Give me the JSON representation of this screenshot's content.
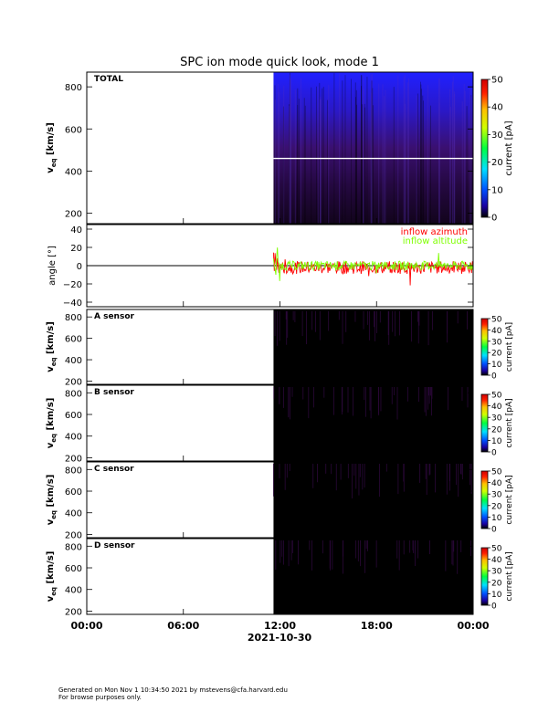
{
  "chart_data": {
    "title": "SPC ion mode quick look, mode 1",
    "date_label": "2021-10-30",
    "x_ticks": [
      "00:00",
      "06:00",
      "12:00",
      "18:00",
      "00:00"
    ],
    "x_range_hours": [
      0,
      24
    ],
    "data_start_hour": 11.6,
    "colorbar_label": "current [pA]",
    "colorbar_ticks_total": [
      "0",
      "10",
      "20",
      "30",
      "40",
      "50"
    ],
    "colorbar_ticks_sensor": [
      "0",
      "10",
      "20",
      "30",
      "40",
      "50"
    ],
    "vel_ylabel_main": "v",
    "vel_ylabel_sub": "eq",
    "vel_ylabel_unit": "[km/s]",
    "panels": [
      {
        "name": "TOTAL",
        "type": "heatmap",
        "ylim": [
          150,
          870
        ],
        "yticks": [
          "200",
          "400",
          "600",
          "800"
        ],
        "white_line_value": 460
      },
      {
        "name": "angle",
        "type": "line",
        "ylabel": "angle [°]",
        "ylim": [
          -45,
          45
        ],
        "yticks": [
          "40",
          "20",
          "0",
          "−20",
          "−40"
        ],
        "series": [
          {
            "name": "inflow azimuth",
            "color": "#ff0000"
          },
          {
            "name": "inflow altitude",
            "color": "#7fff00"
          }
        ]
      },
      {
        "name": "A sensor",
        "type": "heatmap",
        "ylim": [
          170,
          870
        ],
        "yticks": [
          "200",
          "400",
          "600",
          "800"
        ]
      },
      {
        "name": "B sensor",
        "type": "heatmap",
        "ylim": [
          170,
          870
        ],
        "yticks": [
          "200",
          "400",
          "600",
          "800"
        ]
      },
      {
        "name": "C sensor",
        "type": "heatmap",
        "ylim": [
          170,
          870
        ],
        "yticks": [
          "200",
          "400",
          "600",
          "800"
        ]
      },
      {
        "name": "D sensor",
        "type": "heatmap",
        "ylim": [
          170,
          870
        ],
        "yticks": [
          "200",
          "400",
          "600",
          "800"
        ]
      }
    ]
  },
  "footer": {
    "line1": "Generated on Mon Nov  1 10:34:50 2021 by mstevens@cfa.harvard.edu",
    "line2": "For browse purposes only."
  }
}
